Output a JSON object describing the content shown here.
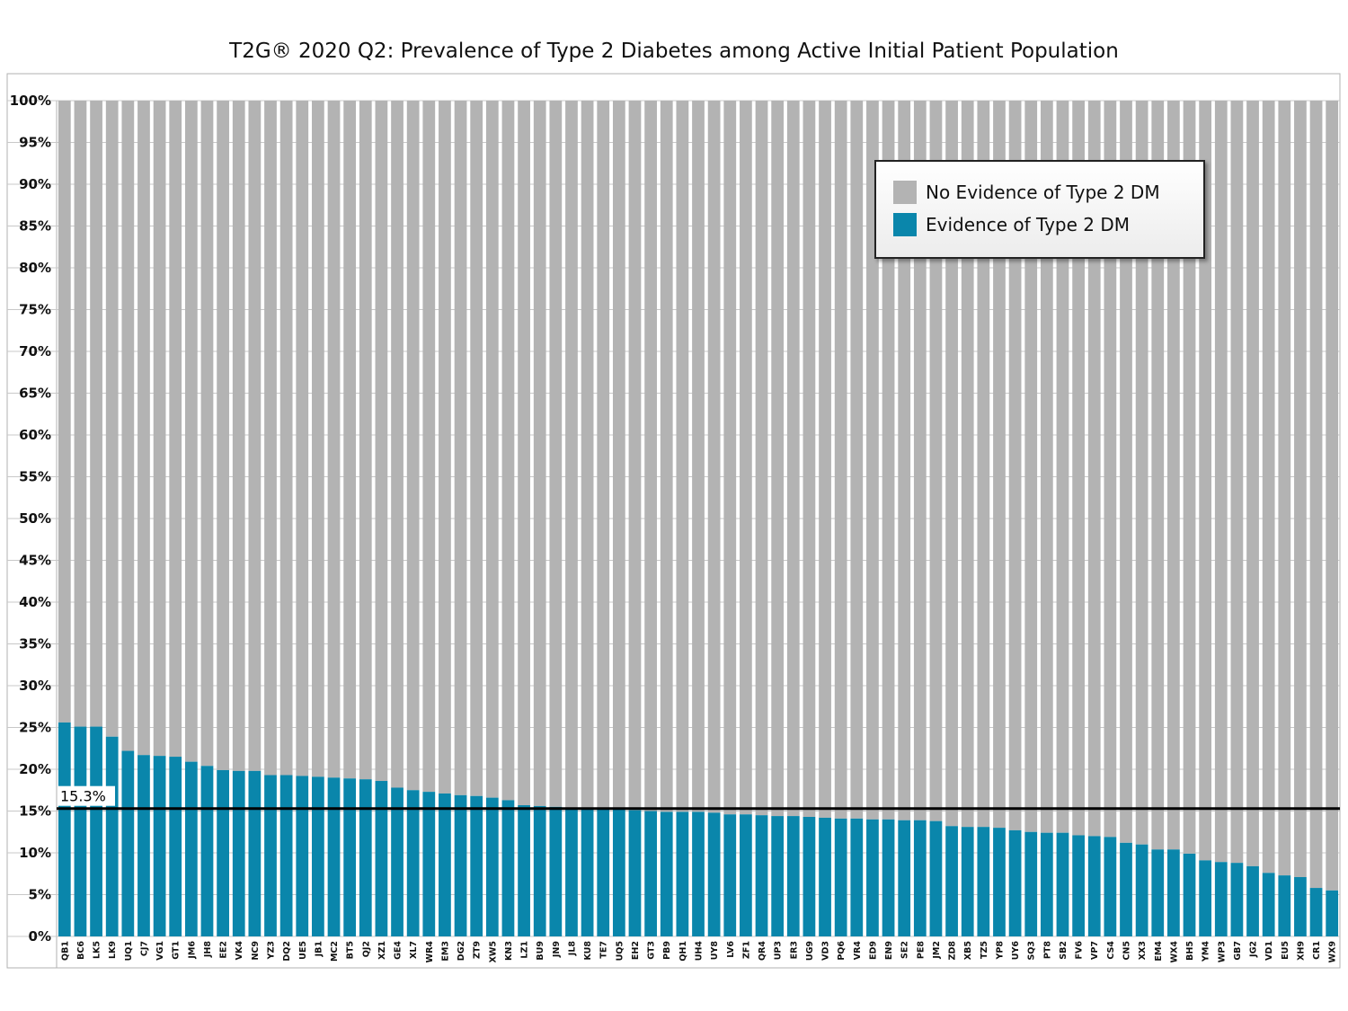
{
  "chart_data": {
    "type": "bar",
    "stacked": true,
    "title": "T2G® 2020 Q2: Prevalence of Type 2 Diabetes among Active Initial Patient Population",
    "ylim": [
      0,
      100
    ],
    "yticks": [
      "0%",
      "5%",
      "10%",
      "15%",
      "20%",
      "25%",
      "30%",
      "35%",
      "40%",
      "45%",
      "50%",
      "55%",
      "60%",
      "65%",
      "70%",
      "75%",
      "80%",
      "85%",
      "90%",
      "95%",
      "100%"
    ],
    "grid": true,
    "legend_position": "top-right",
    "categories": [
      "QB1",
      "BC6",
      "LK5",
      "LK9",
      "UQ1",
      "CJ7",
      "VG1",
      "GT1",
      "JM6",
      "JH8",
      "EE2",
      "VK4",
      "NC9",
      "YZ3",
      "DQ2",
      "UE5",
      "JB1",
      "MC2",
      "BT5",
      "QJ2",
      "XZ1",
      "GE4",
      "XL7",
      "WR4",
      "EM3",
      "DG2",
      "ZT9",
      "XW5",
      "KN3",
      "LZ1",
      "BU9",
      "JN9",
      "JL8",
      "KU8",
      "TE7",
      "UQ5",
      "EH2",
      "GT3",
      "PB9",
      "QH1",
      "UH4",
      "UY8",
      "LV6",
      "ZF1",
      "QR4",
      "UP3",
      "ER3",
      "UG9",
      "VD3",
      "PQ6",
      "VR4",
      "ED9",
      "EN9",
      "SE2",
      "PE8",
      "JM2",
      "ZD8",
      "XB5",
      "TZ5",
      "YP8",
      "UY6",
      "SQ3",
      "PT8",
      "SB2",
      "FV6",
      "VP7",
      "CS4",
      "CN5",
      "XX3",
      "EM4",
      "WX4",
      "BH5",
      "YM4",
      "WP3",
      "GB7",
      "JG2",
      "VD1",
      "EU5",
      "XH9",
      "CR1",
      "WX9"
    ],
    "series": [
      {
        "name": "Evidence of Type 2 DM",
        "color": "#0a86ab",
        "values": [
          25.6,
          25.1,
          25.1,
          23.9,
          22.2,
          21.7,
          21.6,
          21.5,
          20.9,
          20.4,
          19.9,
          19.8,
          19.8,
          19.3,
          19.3,
          19.2,
          19.1,
          19.0,
          18.9,
          18.8,
          18.6,
          17.8,
          17.5,
          17.3,
          17.1,
          16.9,
          16.8,
          16.6,
          16.3,
          15.7,
          15.6,
          15.5,
          15.3,
          15.3,
          15.2,
          15.2,
          15.1,
          15.0,
          14.9,
          14.9,
          14.9,
          14.8,
          14.6,
          14.6,
          14.5,
          14.4,
          14.4,
          14.3,
          14.2,
          14.1,
          14.1,
          14.0,
          14.0,
          13.9,
          13.9,
          13.8,
          13.2,
          13.1,
          13.1,
          13.0,
          12.7,
          12.5,
          12.4,
          12.4,
          12.1,
          12.0,
          11.9,
          11.2,
          11.0,
          10.4,
          10.4,
          9.9,
          9.1,
          8.9,
          8.8,
          8.4,
          7.6,
          7.3,
          7.1,
          5.8,
          5.5
        ]
      },
      {
        "name": "No Evidence of Type 2 DM",
        "color": "#b3b3b3",
        "values_note": "remainder to 100%"
      }
    ],
    "reference_line": {
      "value": 15.3,
      "label": "15.3%"
    }
  },
  "legend": {
    "no_evidence": {
      "label": "No Evidence of Type 2 DM",
      "color": "#b3b3b3"
    },
    "evidence": {
      "label": "Evidence of Type 2 DM",
      "color": "#0a86ab"
    }
  }
}
